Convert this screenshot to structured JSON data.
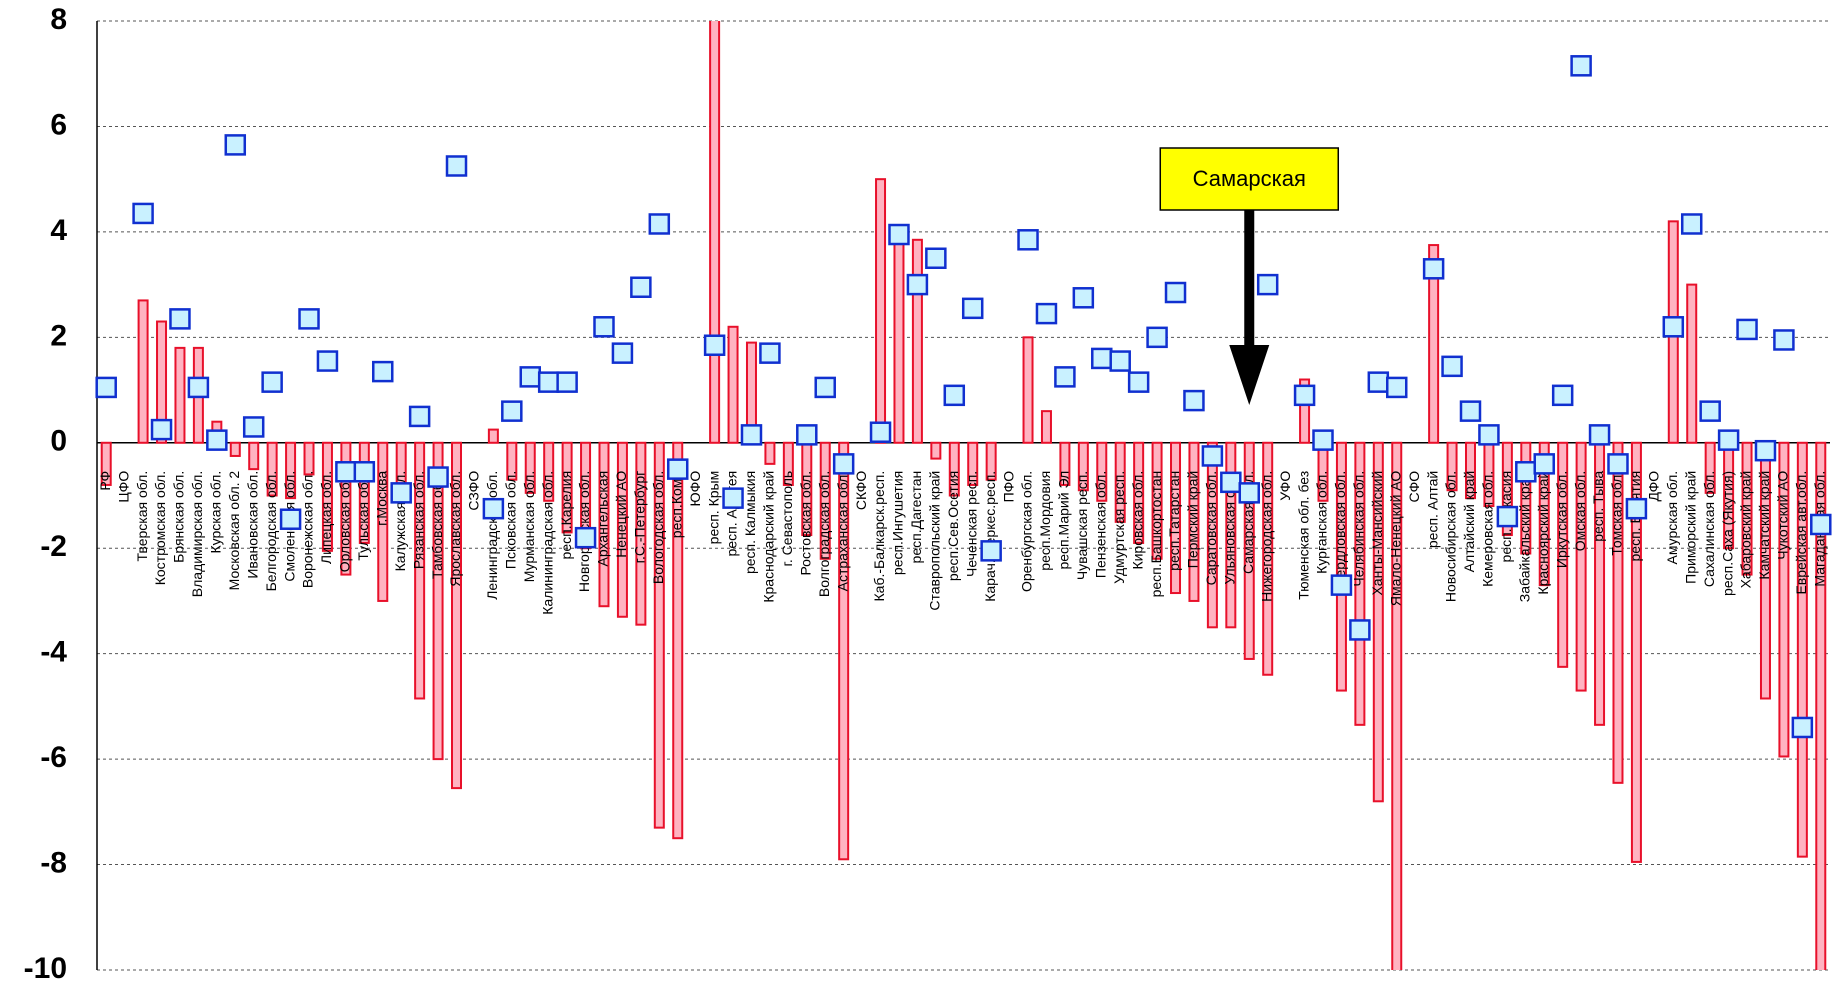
{
  "chart_data": {
    "type": "bar",
    "annotation": "Самарская",
    "categories": [
      "РФ",
      "ЦФО",
      "Тверская обл.",
      "Костромская обл.",
      "Брянская обл.",
      "Владимирская обл.",
      "Курская обл.",
      "Московская обл. 2",
      "Ивановская обл.",
      "Белгородская обл.",
      "Смоленская обл.",
      "Воронежская обл.",
      "Липецкая обл.",
      "Орловская обл.",
      "Тульская обл.",
      "г.Москва",
      "Калужская обл.",
      "Рязанская обл.",
      "Тамбовская обл.",
      "Ярославская обл.",
      "СЗФО",
      "Ленинградская обл.",
      "Псковская обл.",
      "Мурманская обл.",
      "Калининградская обл.",
      "респ.Карелия",
      "Новгородская обл.",
      "Архангельская",
      "Ненецкий АО",
      "г.С.-Петербург",
      "Вологодская обл.",
      "респ.Коми",
      "ЮФО",
      "респ. Крым",
      "респ. Адыгея",
      "респ. Калмыкия",
      "Краснодарский край",
      "г. Севастополь",
      "Ростовская обл.",
      "Волгоградская обл.",
      "Астраханская обл.",
      "СКФО",
      "Каб.-Балкарск.респ.",
      "респ.Ингушетия",
      "респ.Дагестан",
      "Ставропольский край",
      "респ.Сев.Осетия",
      "Чеченская респ.",
      "Карач.-Черкес.респ.",
      "ПФО",
      "Оренбургская обл.",
      "респ.Мордовия",
      "респ.Марий Эл",
      "Чувашская респ.",
      "Пензенская обл.",
      "Удмуртская респ.",
      "Кировская обл.",
      "респ.Башкортостан",
      "респ.Татарстан",
      "Пермский край",
      "Саратовская обл.",
      "Ульяновская обл.",
      "Самарская обл.",
      "Нижегородская обл.",
      "УФО",
      "Тюменская обл. без",
      "Курганская обл.",
      "Свердловская обл.",
      "Челябинская обл.",
      "Ханты-Мансийский",
      "Ямало-Ненецкий АО",
      "СФО",
      "респ. Алтай",
      "Новосибирская обл.",
      "Алтайский край",
      "Кемеровская обл.",
      "респ. Хакасия",
      "Забайкальский край",
      "Красноярский край",
      "Иркутская обл.",
      "Омская обл.",
      "респ. Тыва",
      "Томская обл.",
      "респ. Бурятия",
      "ДФО",
      "Амурская обл.",
      "Приморский край",
      "Сахалинская обл.",
      "респ.Саха (Якутия)",
      "Хабаровский край",
      "Камчатский край",
      "Чукотский АО",
      "Еврейская авт.обл.",
      "Магаданская обл."
    ],
    "series": [
      {
        "type": "bar",
        "color": "#e8102a",
        "fill": "#ffb3c1",
        "values": [
          -0.8,
          null,
          2.7,
          2.3,
          1.8,
          1.8,
          0.4,
          -0.25,
          -0.5,
          -1.0,
          -1.05,
          -0.6,
          -2.05,
          -2.5,
          -1.9,
          -3.0,
          -1.0,
          -4.85,
          -6.0,
          -6.55,
          null,
          0.25,
          -0.7,
          -0.95,
          -1.1,
          -1.7,
          -2.0,
          -3.1,
          -3.3,
          -3.45,
          -7.3,
          -7.5,
          null,
          8.5,
          2.2,
          1.9,
          -0.4,
          -0.8,
          -1.75,
          -2.2,
          -7.9,
          null,
          5.0,
          3.9,
          3.85,
          -0.3,
          -1.0,
          -0.8,
          -0.7,
          null,
          2.0,
          0.6,
          -0.8,
          -0.9,
          -1.1,
          -1.5,
          -1.9,
          -2.2,
          -2.85,
          -3.0,
          -3.5,
          -3.5,
          -4.1,
          -4.4,
          null,
          1.2,
          -1.1,
          -4.7,
          -5.35,
          -6.8,
          -10.2,
          null,
          3.75,
          -0.9,
          -1.05,
          -1.2,
          -1.75,
          -2.1,
          -2.7,
          -4.25,
          -4.7,
          -5.35,
          -6.45,
          -7.95,
          null,
          4.2,
          3.0,
          -0.95,
          -2.0,
          -2.5,
          -4.85,
          -5.95,
          -7.85,
          -10.2
        ]
      },
      {
        "type": "scatter",
        "color": "#1030d0",
        "fill": "#c9f1ff",
        "values": [
          1.05,
          null,
          4.35,
          0.25,
          2.35,
          1.05,
          0.05,
          5.65,
          0.3,
          1.15,
          -1.45,
          2.35,
          1.55,
          -0.55,
          -0.55,
          1.35,
          -0.95,
          0.5,
          -0.65,
          5.25,
          null,
          -1.25,
          0.6,
          1.25,
          1.15,
          1.15,
          -1.8,
          2.2,
          1.7,
          2.95,
          4.15,
          -0.5,
          null,
          1.85,
          -1.05,
          0.15,
          1.7,
          null,
          0.15,
          1.05,
          -0.4,
          null,
          0.2,
          3.95,
          3.0,
          3.5,
          0.9,
          2.55,
          -2.05,
          null,
          3.85,
          2.45,
          1.25,
          2.75,
          1.6,
          1.55,
          1.15,
          2.0,
          2.85,
          0.8,
          -0.25,
          -0.75,
          -0.95,
          3.0,
          null,
          0.9,
          0.05,
          -2.7,
          -3.55,
          1.15,
          1.05,
          null,
          3.3,
          1.45,
          0.6,
          0.15,
          -1.4,
          -0.55,
          -0.4,
          0.9,
          7.15,
          0.15,
          -0.4,
          -1.25,
          null,
          2.2,
          4.15,
          0.6,
          0.05,
          2.15,
          -0.15,
          1.95,
          -5.4,
          -1.55
        ]
      }
    ],
    "ylim": [
      -10,
      8
    ],
    "yticks": [
      8,
      6,
      4,
      2,
      0,
      -2,
      -4,
      -6,
      -8,
      -10
    ],
    "grid": true
  }
}
